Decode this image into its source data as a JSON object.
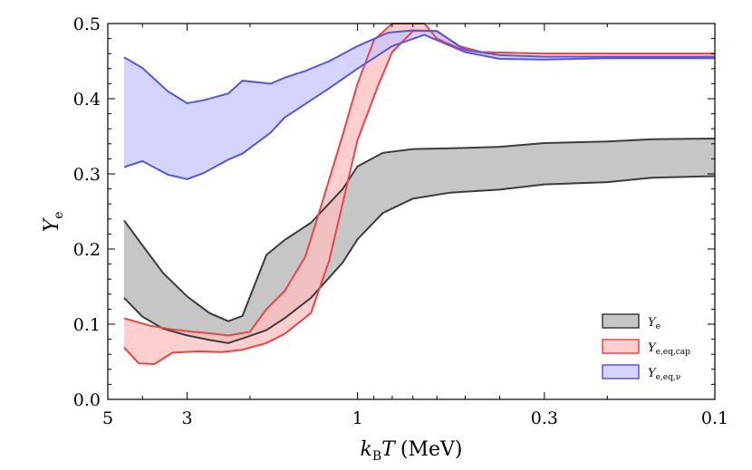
{
  "chart_data": {
    "type": "area",
    "title": "",
    "xlabel": "k_B T (MeV)",
    "xlabel_parts": {
      "k": "k",
      "sub": "B",
      "T": "T",
      "unit": "(MeV)"
    },
    "ylabel": "Y_e",
    "ylabel_parts": {
      "Y": "Y",
      "sub": "e"
    },
    "x_scale": "log",
    "x_reversed": true,
    "xlim": [
      5,
      0.1
    ],
    "ylim": [
      0.0,
      0.5
    ],
    "x_ticks": [
      {
        "value": 5,
        "label": "5"
      },
      {
        "value": 3,
        "label": "3"
      },
      {
        "value": 1,
        "label": "1"
      },
      {
        "value": 0.3,
        "label": "0.3"
      },
      {
        "value": 0.1,
        "label": "0.1"
      }
    ],
    "y_ticks": [
      {
        "value": 0.0,
        "label": "0.0"
      },
      {
        "value": 0.1,
        "label": "0.1"
      },
      {
        "value": 0.2,
        "label": "0.2"
      },
      {
        "value": 0.3,
        "label": "0.3"
      },
      {
        "value": 0.4,
        "label": "0.4"
      },
      {
        "value": 0.5,
        "label": "0.5"
      }
    ],
    "legend": "lower-right",
    "series": [
      {
        "name": "Y_e",
        "label_main": "Y",
        "label_sub": "e",
        "fill_color": "#b3b3b3",
        "line_color": "#3c3c3c",
        "upper": {
          "x": [
            4.5,
            4.0,
            3.5,
            3.0,
            2.6,
            2.3,
            2.1,
            1.8,
            1.6,
            1.35,
            1.1,
            1.0,
            0.85,
            0.7,
            0.55,
            0.4,
            0.3,
            0.2,
            0.15,
            0.1
          ],
          "y": [
            0.238,
            0.205,
            0.168,
            0.137,
            0.115,
            0.104,
            0.111,
            0.192,
            0.212,
            0.235,
            0.28,
            0.31,
            0.328,
            0.333,
            0.334,
            0.336,
            0.341,
            0.343,
            0.346,
            0.347
          ]
        },
        "lower": {
          "x": [
            4.5,
            4.0,
            3.5,
            3.0,
            2.6,
            2.3,
            2.1,
            1.8,
            1.6,
            1.35,
            1.1,
            1.0,
            0.85,
            0.7,
            0.55,
            0.4,
            0.3,
            0.2,
            0.15,
            0.1
          ],
          "y": [
            0.135,
            0.11,
            0.094,
            0.085,
            0.079,
            0.075,
            0.081,
            0.092,
            0.108,
            0.135,
            0.182,
            0.213,
            0.248,
            0.267,
            0.275,
            0.279,
            0.286,
            0.289,
            0.295,
            0.297
          ]
        }
      },
      {
        "name": "Y_e,eq,cap",
        "label_main": "Y",
        "label_sub": "e,eq,cap",
        "fill_color": "#ffbdbd",
        "line_color": "#f04444",
        "upper": {
          "x": [
            4.5,
            3.8,
            3.3,
            2.9,
            2.6,
            2.3,
            2.0,
            1.8,
            1.6,
            1.4,
            1.25,
            1.1,
            1.0,
            0.9,
            0.8,
            0.72,
            0.65,
            0.6,
            0.52,
            0.45,
            0.3,
            0.1
          ],
          "y": [
            0.108,
            0.098,
            0.093,
            0.09,
            0.088,
            0.085,
            0.09,
            0.12,
            0.144,
            0.19,
            0.265,
            0.352,
            0.42,
            0.478,
            0.5,
            0.5,
            0.5,
            0.48,
            0.467,
            0.462,
            0.46,
            0.46
          ]
        },
        "lower": {
          "x": [
            4.5,
            4.1,
            3.7,
            3.3,
            2.8,
            2.4,
            2.1,
            1.8,
            1.6,
            1.35,
            1.2,
            1.0,
            0.88,
            0.8,
            0.7,
            0.6,
            0.52,
            0.45,
            0.3,
            0.1
          ],
          "y": [
            0.069,
            0.048,
            0.047,
            0.062,
            0.064,
            0.063,
            0.066,
            0.075,
            0.087,
            0.115,
            0.185,
            0.345,
            0.415,
            0.462,
            0.49,
            0.49,
            0.47,
            0.462,
            0.46,
            0.46
          ]
        }
      },
      {
        "name": "Y_e,eq,nu",
        "label_main": "Y",
        "label_sub": "e,eq,ν",
        "fill_color": "#c5c5ff",
        "line_color": "#5555ee",
        "upper": {
          "x": [
            4.5,
            4.0,
            3.4,
            3.0,
            2.7,
            2.3,
            2.1,
            1.75,
            1.6,
            1.4,
            1.2,
            1.0,
            0.82,
            0.7,
            0.6,
            0.5,
            0.4,
            0.3,
            0.2,
            0.1
          ],
          "y": [
            0.455,
            0.441,
            0.41,
            0.394,
            0.398,
            0.407,
            0.424,
            0.42,
            0.428,
            0.437,
            0.45,
            0.47,
            0.488,
            0.491,
            0.49,
            0.465,
            0.458,
            0.456,
            0.456,
            0.456
          ]
        },
        "lower": {
          "x": [
            4.5,
            4.0,
            3.4,
            3.0,
            2.7,
            2.3,
            2.1,
            1.75,
            1.6,
            1.4,
            1.2,
            1.0,
            0.8,
            0.65,
            0.5,
            0.4,
            0.3,
            0.2,
            0.1
          ],
          "y": [
            0.309,
            0.317,
            0.299,
            0.293,
            0.301,
            0.319,
            0.327,
            0.355,
            0.375,
            0.393,
            0.414,
            0.44,
            0.47,
            0.485,
            0.462,
            0.453,
            0.452,
            0.454,
            0.454
          ]
        }
      }
    ]
  }
}
